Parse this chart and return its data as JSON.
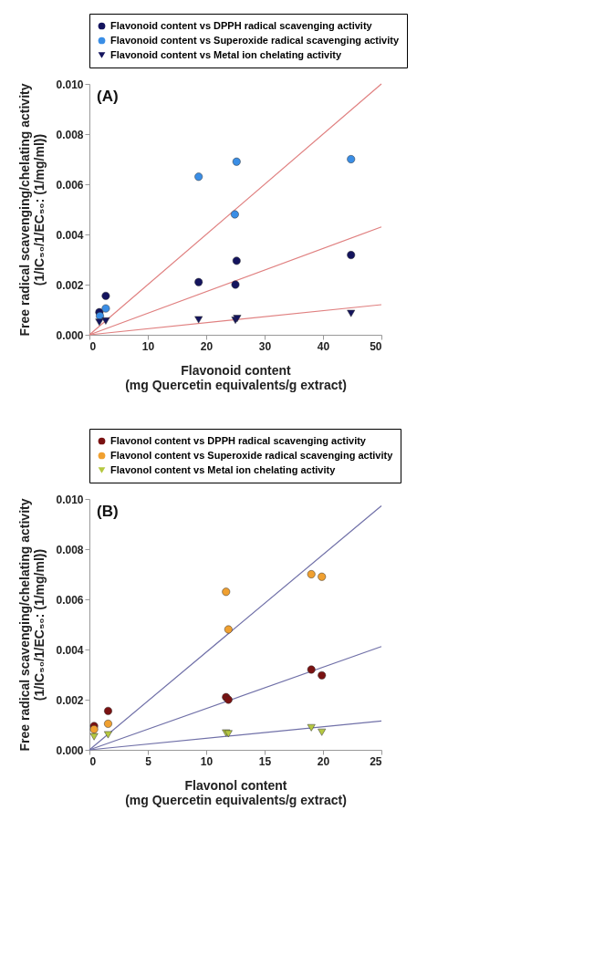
{
  "chart_data": [
    {
      "type": "scatter",
      "xlabel": [
        "Flavonoid content",
        "(mg Quercetin equivalents/g extract)"
      ],
      "ylabel": [
        "Free radical scavenging/chelating activity",
        "(1/IC₅₀/1/EC₅₀: (1/mg/ml))"
      ],
      "annotations": [
        "(A)"
      ],
      "legend": "top",
      "grid": false,
      "xlim": [
        0,
        50
      ],
      "xticks": [
        0,
        10,
        20,
        30,
        40,
        50
      ],
      "ylim": [
        0,
        0.01
      ],
      "yticks": [
        {
          "value": 0,
          "label": "0.000"
        },
        {
          "value": 0.002,
          "label": "0.002"
        },
        {
          "value": 0.004,
          "label": "0.004"
        },
        {
          "value": 0.006,
          "label": "0.006"
        },
        {
          "value": 0.008,
          "label": "0.008"
        },
        {
          "value": 0.01,
          "label": "0.010"
        }
      ],
      "series": [
        {
          "name": "Flavonoid content vs DPPH radical scavenging activity",
          "color": "#14145e",
          "marker": "circle",
          "x": [
            1.7,
            2.8,
            18.7,
            25,
            25.2,
            44.8
          ],
          "values": [
            0.0009,
            0.00155,
            0.0021,
            0.002,
            0.00295,
            0.00318
          ]
        },
        {
          "name": "Flavonoid content vs Superoxide radical scavenging activity",
          "color": "#3a8ee6",
          "marker": "circle",
          "x": [
            1.8,
            2.8,
            18.7,
            24.9,
            25.2,
            44.8
          ],
          "values": [
            0.00075,
            0.00105,
            0.0063,
            0.0048,
            0.0069,
            0.007
          ]
        },
        {
          "name": "Flavonoid content vs Metal ion chelating activity",
          "color": "#14145e",
          "marker": "triangle",
          "x": [
            1.7,
            2.8,
            18.7,
            25,
            25.3,
            44.8
          ],
          "values": [
            0.0005,
            0.00055,
            0.0006,
            0.00058,
            0.00065,
            0.00085
          ]
        },
        {
          "type": "line",
          "color": "#e08080",
          "x": [
            0,
            50
          ],
          "values": [
            0,
            0.01
          ]
        },
        {
          "type": "line",
          "color": "#e08080",
          "x": [
            0,
            50
          ],
          "values": [
            0,
            0.0043
          ]
        },
        {
          "type": "line",
          "color": "#e08080",
          "x": [
            0,
            50
          ],
          "values": [
            0,
            0.0012
          ]
        }
      ]
    },
    {
      "type": "scatter",
      "xlabel": [
        "Flavonol content",
        "(mg Quercetin equivalents/g extract)"
      ],
      "ylabel": [
        "Free radical scavenging/chelating activity",
        "(1/IC₅₀/1/EC₅₀: (1/mg/ml))"
      ],
      "annotations": [
        "(B)"
      ],
      "legend": "top",
      "grid": false,
      "xlim": [
        0,
        25
      ],
      "xticks": [
        0,
        5,
        10,
        15,
        20,
        25
      ],
      "ylim": [
        0,
        0.01
      ],
      "yticks": [
        {
          "value": 0,
          "label": "0.000"
        },
        {
          "value": 0.002,
          "label": "0.002"
        },
        {
          "value": 0.004,
          "label": "0.004"
        },
        {
          "value": 0.006,
          "label": "0.006"
        },
        {
          "value": 0.008,
          "label": "0.008"
        },
        {
          "value": 0.01,
          "label": "0.010"
        }
      ],
      "series": [
        {
          "name": "Flavonol content vs DPPH radical scavenging activity",
          "color": "#7a1212",
          "marker": "circle",
          "x": [
            0.4,
            1.6,
            11.7,
            11.9,
            19,
            19.9
          ],
          "values": [
            0.00095,
            0.00155,
            0.0021,
            0.002,
            0.0032,
            0.00297
          ]
        },
        {
          "name": "Flavonol content vs Superoxide radical scavenging activity",
          "color": "#f0a030",
          "marker": "circle",
          "x": [
            0.4,
            1.6,
            11.7,
            11.9,
            19,
            19.9
          ],
          "values": [
            0.00082,
            0.00104,
            0.0063,
            0.0048,
            0.007,
            0.0069
          ]
        },
        {
          "name": "Flavonol content vs Metal ion chelating activity",
          "color": "#b5c840",
          "marker": "triangle",
          "x": [
            0.4,
            1.6,
            11.7,
            11.9,
            19,
            19.9
          ],
          "values": [
            0.00052,
            0.0006,
            0.00067,
            0.00064,
            0.00088,
            0.0007
          ]
        },
        {
          "type": "line",
          "color": "#7070a8",
          "x": [
            0,
            25
          ],
          "values": [
            0,
            0.00973
          ]
        },
        {
          "type": "line",
          "color": "#7070a8",
          "x": [
            0,
            25
          ],
          "values": [
            0,
            0.00412
          ]
        },
        {
          "type": "line",
          "color": "#7070a8",
          "x": [
            0,
            25
          ],
          "values": [
            0,
            0.00115
          ]
        }
      ]
    }
  ]
}
